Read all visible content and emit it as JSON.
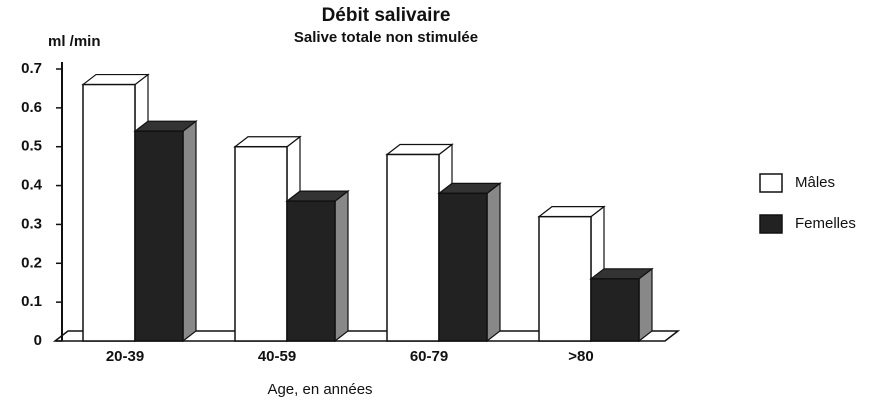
{
  "chart_data": {
    "type": "bar3d",
    "title": "Débit salivaire",
    "subtitle": "Salive totale non stimulée",
    "y_label": "ml /min",
    "x_label": "Age, en années",
    "categories": [
      "20-39",
      "40-59",
      "60-79",
      ">80"
    ],
    "series": [
      {
        "name": "Mâles",
        "color": "#ffffff",
        "values": [
          0.66,
          0.5,
          0.48,
          0.32
        ]
      },
      {
        "name": "Femelles",
        "color": "#222222",
        "values": [
          0.54,
          0.36,
          0.38,
          0.16
        ]
      }
    ],
    "ylim": [
      0,
      0.7
    ],
    "yticks": [
      0,
      0.1,
      0.2,
      0.3,
      0.4,
      0.5,
      0.6,
      0.7
    ],
    "legend": "right"
  }
}
